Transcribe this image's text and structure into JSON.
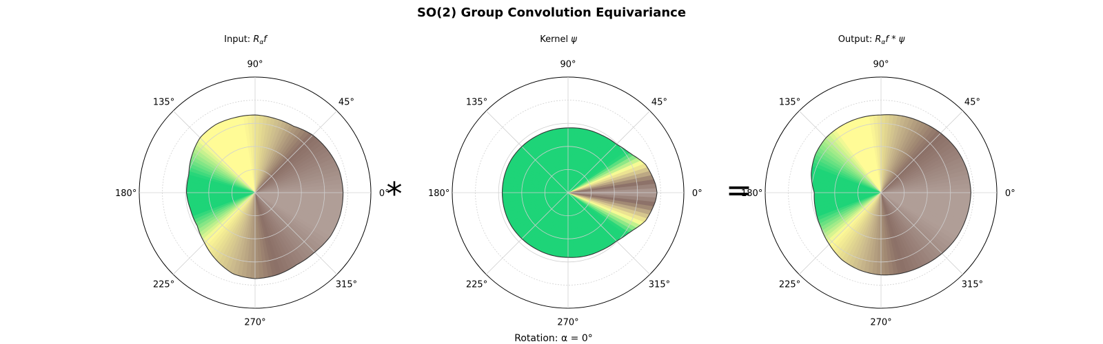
{
  "figure": {
    "title": "SO(2) Group Convolution Equivariance",
    "caption": "Rotation: α = 0°",
    "operators": [
      "*",
      "="
    ]
  },
  "colors": {
    "green": "#1ed478",
    "yellow": "#fffb96",
    "tan": "#c9b88c",
    "brown": "#8b6f66",
    "mauve": "#b09e97",
    "outline": "#333333",
    "grid": "#d0d0d0"
  },
  "chart_data": [
    {
      "type": "polar-area",
      "title_prefix": "Input: ",
      "title_math": "R",
      "title_sub": "α",
      "title_rest": "f",
      "angle_ticks": [
        "0°",
        "45°",
        "90°",
        "135°",
        "180°",
        "225°",
        "270°",
        "315°"
      ],
      "rlim": [
        0,
        1.25
      ],
      "rgrid": [
        0.25,
        0.5,
        0.75,
        1.0,
        1.25
      ],
      "grid": true,
      "theta_deg": [
        0,
        15,
        30,
        45,
        60,
        75,
        90,
        105,
        120,
        135,
        150,
        165,
        180,
        195,
        210,
        225,
        240,
        255,
        270,
        285,
        300,
        315,
        330,
        345
      ],
      "r": [
        0.95,
        0.94,
        0.91,
        0.88,
        0.83,
        0.83,
        0.84,
        0.84,
        0.85,
        0.84,
        0.79,
        0.74,
        0.74,
        0.72,
        0.72,
        0.77,
        0.84,
        0.91,
        0.93,
        0.92,
        0.9,
        0.91,
        0.94,
        0.95
      ],
      "color_stops": [
        {
          "deg": 0,
          "color": "mauve"
        },
        {
          "deg": 45,
          "color": "brown"
        },
        {
          "deg": 70,
          "color": "tan"
        },
        {
          "deg": 100,
          "color": "yellow"
        },
        {
          "deg": 135,
          "color": "yellow"
        },
        {
          "deg": 165,
          "color": "green"
        },
        {
          "deg": 200,
          "color": "green"
        },
        {
          "deg": 225,
          "color": "yellow"
        },
        {
          "deg": 255,
          "color": "tan"
        },
        {
          "deg": 285,
          "color": "brown"
        },
        {
          "deg": 330,
          "color": "mauve"
        },
        {
          "deg": 360,
          "color": "mauve"
        }
      ]
    },
    {
      "type": "polar-area",
      "title_prefix": "Kernel ",
      "title_math": "ψ",
      "title_sub": "",
      "title_rest": "",
      "angle_ticks": [
        "0°",
        "45°",
        "90°",
        "135°",
        "180°",
        "225°",
        "270°",
        "315°"
      ],
      "rlim": [
        0,
        1.25
      ],
      "rgrid": [
        0.25,
        0.5,
        0.75,
        1.0,
        1.25
      ],
      "grid": true,
      "theta_deg": [
        0,
        5,
        10,
        15,
        20,
        25,
        30,
        35,
        40,
        45,
        60,
        90,
        120,
        150,
        180,
        210,
        240,
        270,
        300,
        315,
        320,
        325,
        330,
        335,
        340,
        345,
        350,
        355
      ],
      "r": [
        0.96,
        0.95,
        0.93,
        0.91,
        0.89,
        0.85,
        0.81,
        0.78,
        0.76,
        0.74,
        0.72,
        0.7,
        0.7,
        0.71,
        0.71,
        0.71,
        0.7,
        0.7,
        0.72,
        0.74,
        0.76,
        0.78,
        0.81,
        0.85,
        0.89,
        0.91,
        0.93,
        0.95
      ],
      "color_stops": [
        {
          "deg": 0,
          "color": "mauve"
        },
        {
          "deg": 8,
          "color": "brown"
        },
        {
          "deg": 15,
          "color": "tan"
        },
        {
          "deg": 22,
          "color": "yellow"
        },
        {
          "deg": 35,
          "color": "green"
        },
        {
          "deg": 325,
          "color": "green"
        },
        {
          "deg": 338,
          "color": "yellow"
        },
        {
          "deg": 345,
          "color": "tan"
        },
        {
          "deg": 352,
          "color": "brown"
        },
        {
          "deg": 360,
          "color": "mauve"
        }
      ]
    },
    {
      "type": "polar-area",
      "title_prefix": "Output: ",
      "title_math": "R",
      "title_sub": "α",
      "title_rest": "f * ψ",
      "angle_ticks": [
        "0°",
        "45°",
        "90°",
        "135°",
        "180°",
        "225°",
        "270°",
        "315°"
      ],
      "rlim": [
        0,
        1.25
      ],
      "rgrid": [
        0.25,
        0.5,
        0.75,
        1.0,
        1.25
      ],
      "grid": true,
      "theta_deg": [
        0,
        15,
        30,
        45,
        60,
        75,
        90,
        105,
        120,
        135,
        150,
        165,
        180,
        195,
        210,
        225,
        240,
        255,
        270,
        285,
        300,
        315,
        330,
        345
      ],
      "r": [
        0.97,
        0.96,
        0.94,
        0.91,
        0.88,
        0.86,
        0.84,
        0.84,
        0.84,
        0.84,
        0.82,
        0.78,
        0.72,
        0.73,
        0.75,
        0.79,
        0.84,
        0.87,
        0.89,
        0.9,
        0.91,
        0.93,
        0.95,
        0.96
      ],
      "color_stops": [
        {
          "deg": 0,
          "color": "mauve"
        },
        {
          "deg": 45,
          "color": "brown"
        },
        {
          "deg": 75,
          "color": "tan"
        },
        {
          "deg": 100,
          "color": "yellow"
        },
        {
          "deg": 125,
          "color": "yellow"
        },
        {
          "deg": 160,
          "color": "green"
        },
        {
          "deg": 200,
          "color": "green"
        },
        {
          "deg": 225,
          "color": "yellow"
        },
        {
          "deg": 255,
          "color": "tan"
        },
        {
          "deg": 285,
          "color": "brown"
        },
        {
          "deg": 330,
          "color": "mauve"
        },
        {
          "deg": 360,
          "color": "mauve"
        }
      ]
    }
  ]
}
